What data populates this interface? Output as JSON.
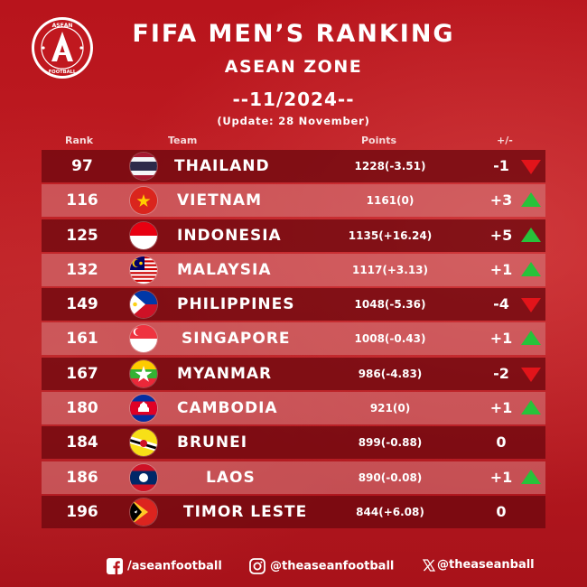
{
  "header": {
    "title": "FIFA MEN’S RANKING",
    "zone": "ASEAN ZONE",
    "period": "--11/2024--",
    "update": "(Update: 28 November)"
  },
  "logo": {
    "text_top": "ASEAN",
    "text_bottom": "FOOTBALL",
    "letter": "A"
  },
  "columns": {
    "rank": "Rank",
    "team": "Team",
    "points": "Points",
    "change": "+/-"
  },
  "rows": [
    {
      "rank": "97",
      "team": "THAILAND",
      "points": "1228(-3.51)",
      "change": "-1",
      "trend": "down",
      "flag": "thailand-flag-icon"
    },
    {
      "rank": "116",
      "team": "VIETNAM",
      "points": "1161(0)",
      "change": "+3",
      "trend": "up",
      "flag": "vietnam-flag-icon"
    },
    {
      "rank": "125",
      "team": "INDONESIA",
      "points": "1135(+16.24)",
      "change": "+5",
      "trend": "up",
      "flag": "indonesia-flag-icon"
    },
    {
      "rank": "132",
      "team": "MALAYSIA",
      "points": "1117(+3.13)",
      "change": "+1",
      "trend": "up",
      "flag": "malaysia-flag-icon"
    },
    {
      "rank": "149",
      "team": "PHILIPPINES",
      "points": "1048(-5.36)",
      "change": "-4",
      "trend": "down",
      "flag": "philippines-flag-icon"
    },
    {
      "rank": "161",
      "team": "SINGAPORE",
      "points": "1008(-0.43)",
      "change": "+1",
      "trend": "up",
      "flag": "singapore-flag-icon"
    },
    {
      "rank": "167",
      "team": "MYANMAR",
      "points": "986(-4.83)",
      "change": "-2",
      "trend": "down",
      "flag": "myanmar-flag-icon"
    },
    {
      "rank": "180",
      "team": "CAMBODIA",
      "points": "921(0)",
      "change": "+1",
      "trend": "up",
      "flag": "cambodia-flag-icon"
    },
    {
      "rank": "184",
      "team": "BRUNEI",
      "points": "899(-0.88)",
      "change": "0",
      "trend": "none",
      "flag": "brunei-flag-icon"
    },
    {
      "rank": "186",
      "team": "LAOS",
      "points": "890(-0.08)",
      "change": "+1",
      "trend": "up",
      "flag": "laos-flag-icon"
    },
    {
      "rank": "196",
      "team": "TIMOR LESTE",
      "points": "844(+6.08)",
      "change": "0",
      "trend": "none",
      "flag": "timor-leste-flag-icon"
    }
  ],
  "footer": {
    "facebook": "/aseanfootball",
    "instagram": "@theaseanfootball",
    "x": "@theaseanball"
  },
  "colors": {
    "up": "#27c23a",
    "down": "#e2141a",
    "row_dark": "#6e080e",
    "background": "#b8141c"
  }
}
